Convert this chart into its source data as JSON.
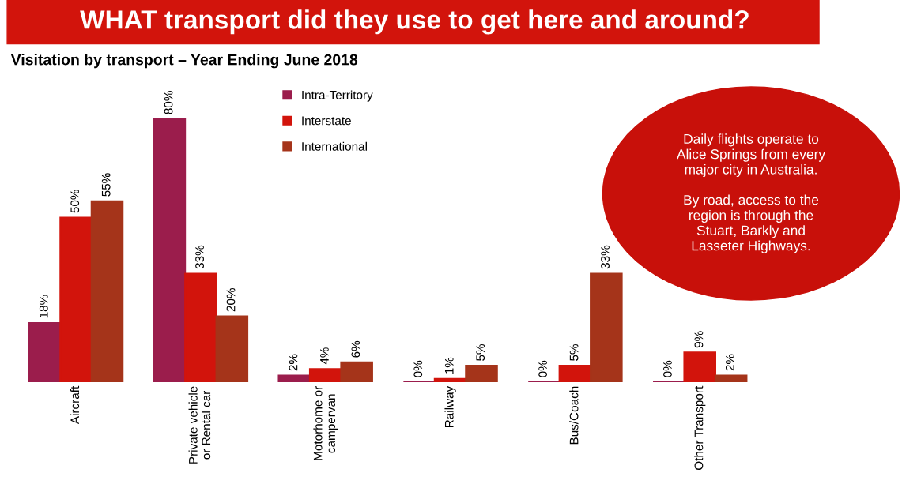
{
  "chart_data": {
    "type": "bar",
    "title": "WHAT transport did they use to get here and around?",
    "subtitle": "Visitation by transport – Year Ending June 2018",
    "categories": [
      "Aircraft",
      "Private vehicle\nor Rental car",
      "Motorhome or\ncampervan",
      "Railway",
      "Bus/Coach",
      "Other Transport"
    ],
    "series": [
      {
        "name": "Intra-Territory",
        "color": "#9b1d4c",
        "values": [
          18,
          80,
          2,
          0,
          0,
          0
        ],
        "value_labels": [
          "18%",
          "80%",
          "2%",
          "0%",
          "0%",
          "0%"
        ]
      },
      {
        "name": "Interstate",
        "color": "#d2140c",
        "values": [
          50,
          33,
          4,
          1,
          5,
          9
        ],
        "value_labels": [
          "50%",
          "33%",
          "4%",
          "1%",
          "5%",
          "9%"
        ]
      },
      {
        "name": "International",
        "color": "#a5341a",
        "values": [
          55,
          20,
          6,
          5,
          33,
          2
        ],
        "value_labels": [
          "55%",
          "20%",
          "6%",
          "5%",
          "33%",
          "2%"
        ]
      }
    ],
    "annotations": [
      "Daily flights operate to\nAlice Springs from every\nmajor city in Australia.\n\nBy road, access to the\nregion is through the\nStuart, Barkly and\nLasseter Highways."
    ],
    "legend": "top",
    "grid": false
  }
}
